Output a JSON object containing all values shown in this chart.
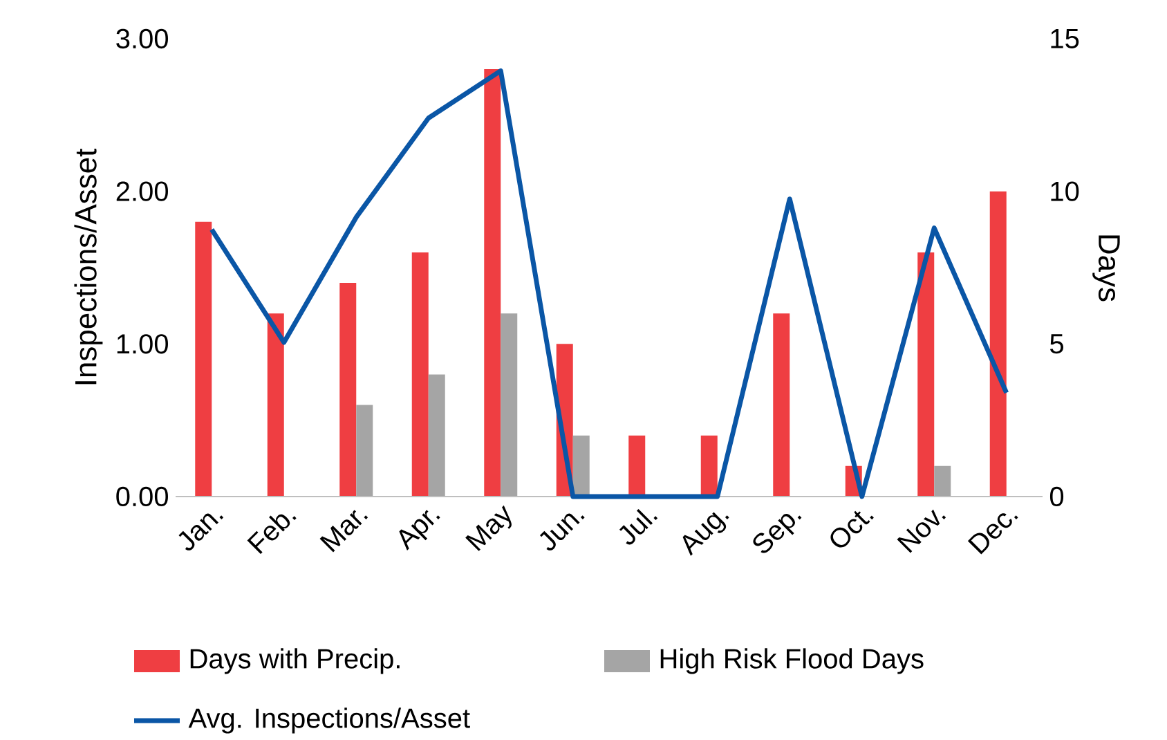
{
  "chart_data": {
    "type": "bar",
    "categories": [
      "Jan.",
      "Feb.",
      "Mar.",
      "Apr.",
      "May",
      "Jun.",
      "Jul.",
      "Aug.",
      "Sep.",
      "Oct.",
      "Nov.",
      "Dec."
    ],
    "series": [
      {
        "name": "Days with Precip.",
        "axis": "y2",
        "color": "#ef3e42",
        "values": [
          9,
          6,
          7,
          8,
          14,
          5,
          2,
          2,
          6,
          1,
          8,
          10
        ]
      },
      {
        "name": "High Risk Flood Days",
        "axis": "y2",
        "color": "#a5a5a5",
        "values": [
          0,
          0,
          3,
          4,
          6,
          2,
          0,
          0,
          0,
          0,
          1,
          0
        ]
      },
      {
        "name": "Avg. Inspections/Asset",
        "type": "line",
        "axis": "y",
        "color": "#0a56a6",
        "values": [
          1.75,
          1.01,
          1.83,
          2.48,
          2.79,
          0,
          0,
          0,
          1.95,
          0,
          1.76,
          0.68
        ]
      }
    ],
    "ylabel": "Inspections/Asset",
    "y2label": "Days",
    "ylim": [
      0,
      3
    ],
    "yticks": [
      {
        "value": 0,
        "label": "0.00"
      },
      {
        "value": 1,
        "label": "1.00"
      },
      {
        "value": 2,
        "label": "2.00"
      },
      {
        "value": 3,
        "label": "3.00"
      }
    ],
    "y2lim": [
      0,
      15
    ],
    "y2ticks": [
      0,
      5,
      10,
      15
    ],
    "legend": "bottom",
    "marker": "none",
    "line_style": "solid"
  }
}
